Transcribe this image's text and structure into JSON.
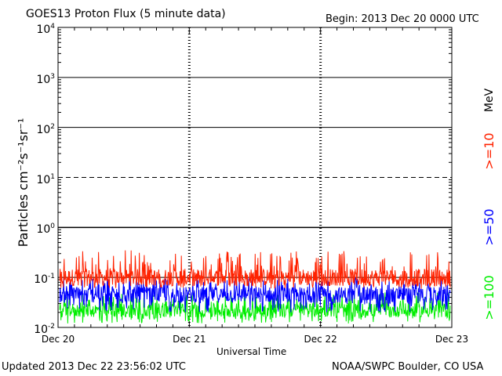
{
  "header": {
    "title": "GOES13 Proton Flux (5 minute data)",
    "begin": "Begin: 2013 Dec 20 0000 UTC"
  },
  "footer": {
    "updated": "Updated 2013 Dec 22 23:56:02 UTC",
    "source": "NOAA/SWPC Boulder, CO USA"
  },
  "chart_data": {
    "type": "line",
    "title": "GOES13 Proton Flux (5 minute data)",
    "xlabel": "Universal Time",
    "ylabel": "Particles cm⁻²s⁻¹sr⁻¹",
    "yscale": "log",
    "ylim": [
      0.01,
      10000
    ],
    "ytick_labels": [
      {
        "base": "10",
        "exp": "-2"
      },
      {
        "base": "10",
        "exp": "-1"
      },
      {
        "base": "10",
        "exp": "0"
      },
      {
        "base": "10",
        "exp": "1"
      },
      {
        "base": "10",
        "exp": "2"
      },
      {
        "base": "10",
        "exp": "3"
      },
      {
        "base": "10",
        "exp": "4"
      }
    ],
    "xlim": [
      "Dec 20",
      "Dec 23"
    ],
    "xtick_labels": [
      "Dec 20",
      "Dec 21",
      "Dec 22",
      "Dec 23"
    ],
    "unit_label": "MeV",
    "legend_placement": "right",
    "threshold_line": 1.0,
    "series": [
      {
        "name": ">=10",
        "color": "#ff2200",
        "typical": 0.1,
        "range": [
          0.06,
          0.35
        ]
      },
      {
        "name": ">=50",
        "color": "#0000ff",
        "typical": 0.045,
        "range": [
          0.02,
          0.1
        ]
      },
      {
        "name": ">=100",
        "color": "#00ee00",
        "typical": 0.022,
        "range": [
          0.012,
          0.05
        ]
      }
    ]
  }
}
